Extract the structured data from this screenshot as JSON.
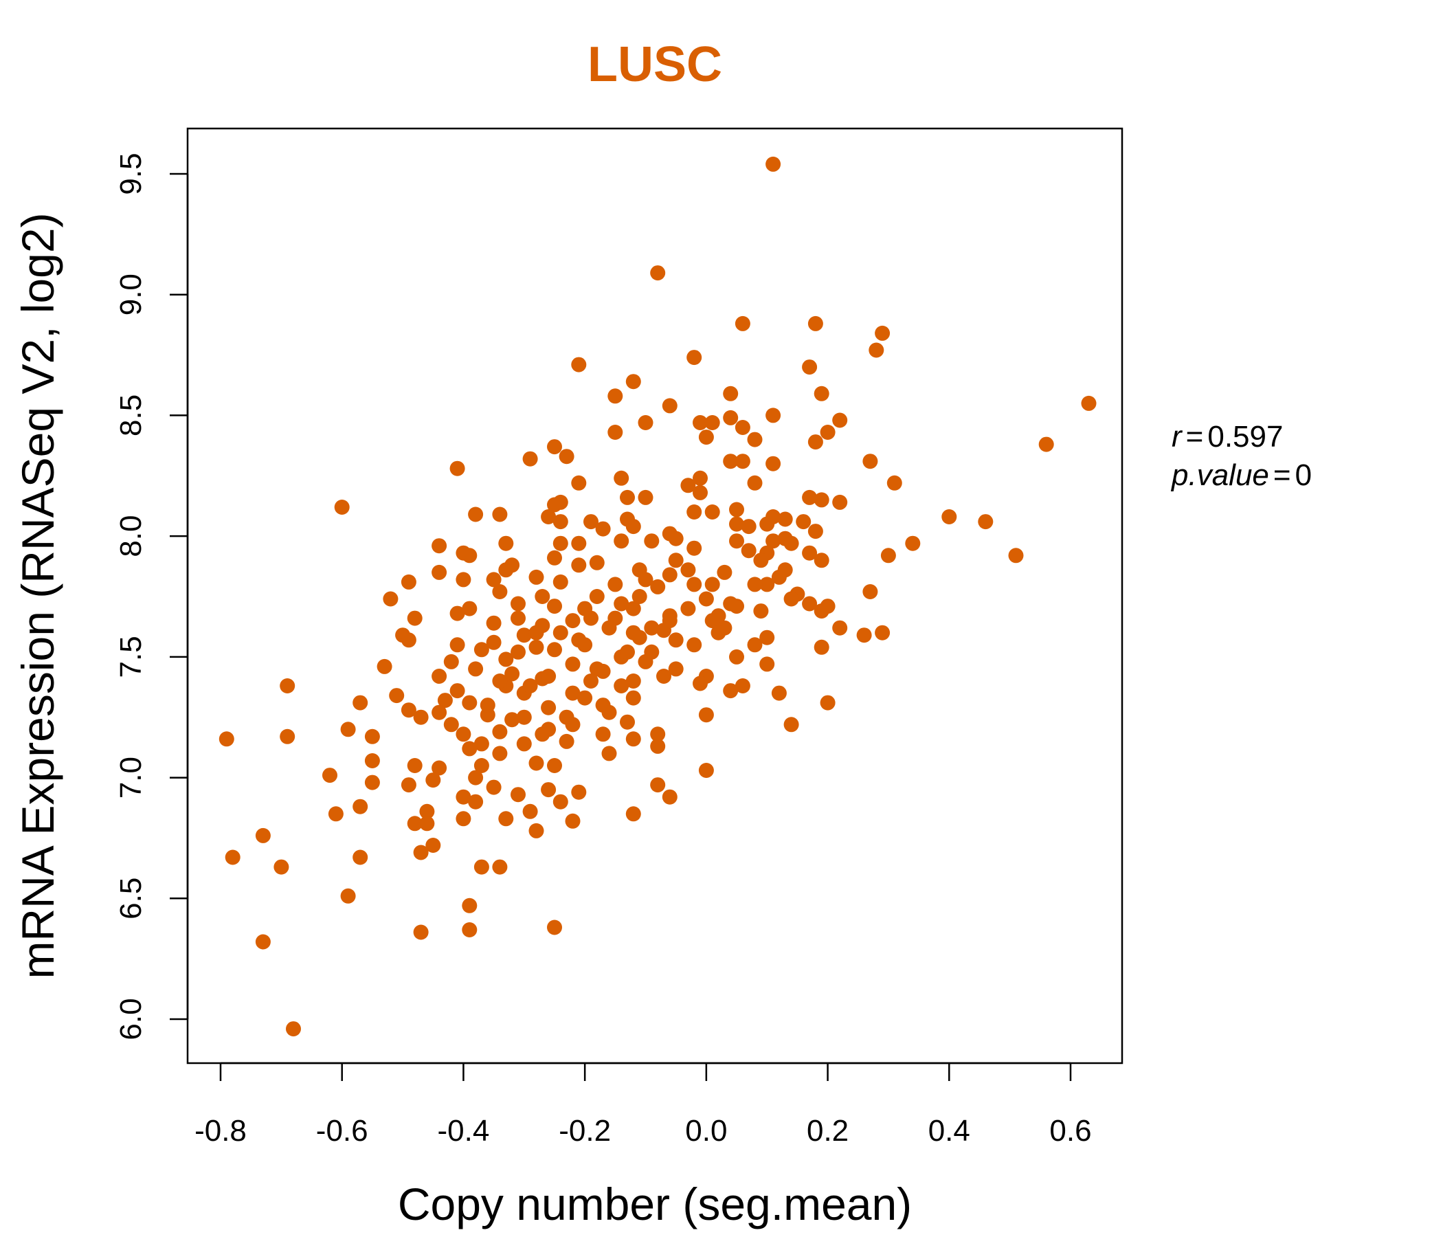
{
  "chart_data": {
    "type": "scatter",
    "title": "LUSC",
    "xlabel": "Copy number (seg.mean)",
    "ylabel": "mRNA Expression (RNASeq V2, log2)",
    "xlim": [
      -0.8,
      0.6
    ],
    "ylim": [
      6.0,
      9.5
    ],
    "x_ticks": [
      -0.8,
      -0.6,
      -0.4,
      -0.2,
      0.0,
      0.2,
      0.4,
      0.6
    ],
    "x_tick_labels": [
      "-0.8",
      "-0.6",
      "-0.4",
      "-0.2",
      "0.0",
      "0.2",
      "0.4",
      "0.6"
    ],
    "y_ticks": [
      6.0,
      6.5,
      7.0,
      7.5,
      8.0,
      8.5,
      9.0,
      9.5
    ],
    "y_tick_labels": [
      "6.0",
      "6.5",
      "7.0",
      "7.5",
      "8.0",
      "8.5",
      "9.0",
      "9.5"
    ],
    "grid": false,
    "annotation": {
      "r_label": "r",
      "r_value": "0.597",
      "p_label": "p.value",
      "p_value": "0"
    },
    "colors": {
      "title": "#D95F02",
      "points": "#D95F02",
      "axes": "#000000"
    },
    "points": [
      [
        0.11,
        9.54
      ],
      [
        -0.08,
        9.09
      ],
      [
        0.06,
        8.88
      ],
      [
        0.18,
        8.88
      ],
      [
        0.29,
        8.84
      ],
      [
        0.28,
        8.77
      ],
      [
        -0.02,
        8.74
      ],
      [
        -0.21,
        8.71
      ],
      [
        0.17,
        8.7
      ],
      [
        -0.12,
        8.64
      ],
      [
        0.19,
        8.59
      ],
      [
        0.04,
        8.59
      ],
      [
        -0.15,
        8.58
      ],
      [
        -0.06,
        8.54
      ],
      [
        0.63,
        8.55
      ],
      [
        0.11,
        8.5
      ],
      [
        0.04,
        8.49
      ],
      [
        0.22,
        8.48
      ],
      [
        -0.01,
        8.47
      ],
      [
        0.01,
        8.47
      ],
      [
        -0.1,
        8.47
      ],
      [
        0.06,
        8.45
      ],
      [
        -0.15,
        8.43
      ],
      [
        0.2,
        8.43
      ],
      [
        0.0,
        8.41
      ],
      [
        0.08,
        8.4
      ],
      [
        0.18,
        8.39
      ],
      [
        0.56,
        8.38
      ],
      [
        -0.25,
        8.37
      ],
      [
        -0.23,
        8.33
      ],
      [
        -0.29,
        8.32
      ],
      [
        0.27,
        8.31
      ],
      [
        0.11,
        8.3
      ],
      [
        0.04,
        8.31
      ],
      [
        0.06,
        8.31
      ],
      [
        -0.41,
        8.28
      ],
      [
        -0.01,
        8.24
      ],
      [
        0.31,
        8.22
      ],
      [
        -0.21,
        8.22
      ],
      [
        -0.03,
        8.21
      ],
      [
        0.08,
        8.22
      ],
      [
        -0.14,
        8.24
      ],
      [
        -0.01,
        8.18
      ],
      [
        0.17,
        8.16
      ],
      [
        0.19,
        8.15
      ],
      [
        -0.1,
        8.16
      ],
      [
        0.22,
        8.14
      ],
      [
        -0.25,
        8.13
      ],
      [
        -0.24,
        8.14
      ],
      [
        -0.13,
        8.16
      ],
      [
        -0.6,
        8.12
      ],
      [
        0.05,
        8.11
      ],
      [
        0.13,
        8.07
      ],
      [
        0.11,
        8.08
      ],
      [
        0.4,
        8.08
      ],
      [
        0.46,
        8.06
      ],
      [
        -0.34,
        8.09
      ],
      [
        -0.38,
        8.09
      ],
      [
        -0.26,
        8.08
      ],
      [
        -0.02,
        8.1
      ],
      [
        -0.19,
        8.06
      ],
      [
        0.01,
        8.1
      ],
      [
        0.05,
        8.05
      ],
      [
        0.16,
        8.06
      ],
      [
        -0.24,
        8.06
      ],
      [
        -0.13,
        8.07
      ],
      [
        -0.12,
        8.04
      ],
      [
        0.1,
        8.05
      ],
      [
        0.18,
        8.02
      ],
      [
        -0.17,
        8.03
      ],
      [
        0.07,
        8.04
      ],
      [
        0.13,
        7.99
      ],
      [
        -0.06,
        8.01
      ],
      [
        -0.09,
        7.98
      ],
      [
        -0.05,
        7.99
      ],
      [
        -0.24,
        7.97
      ],
      [
        -0.21,
        7.97
      ],
      [
        -0.44,
        7.96
      ],
      [
        -0.33,
        7.97
      ],
      [
        0.34,
        7.97
      ],
      [
        0.14,
        7.97
      ],
      [
        0.11,
        7.98
      ],
      [
        0.05,
        7.98
      ],
      [
        -0.14,
        7.98
      ],
      [
        0.3,
        7.92
      ],
      [
        0.51,
        7.92
      ],
      [
        -0.4,
        7.93
      ],
      [
        -0.39,
        7.92
      ],
      [
        0.07,
        7.94
      ],
      [
        -0.02,
        7.95
      ],
      [
        0.1,
        7.93
      ],
      [
        0.17,
        7.93
      ],
      [
        -0.25,
        7.91
      ],
      [
        0.09,
        7.9
      ],
      [
        0.19,
        7.9
      ],
      [
        -0.32,
        7.88
      ],
      [
        -0.18,
        7.89
      ],
      [
        -0.21,
        7.88
      ],
      [
        0.13,
        7.86
      ],
      [
        -0.44,
        7.85
      ],
      [
        -0.33,
        7.86
      ],
      [
        -0.03,
        7.86
      ],
      [
        0.03,
        7.85
      ],
      [
        -0.11,
        7.86
      ],
      [
        -0.06,
        7.84
      ],
      [
        0.12,
        7.83
      ],
      [
        -0.4,
        7.82
      ],
      [
        -0.35,
        7.82
      ],
      [
        -0.28,
        7.83
      ],
      [
        -0.49,
        7.81
      ],
      [
        -0.24,
        7.81
      ],
      [
        -0.02,
        7.8
      ],
      [
        0.01,
        7.8
      ],
      [
        -0.15,
        7.8
      ],
      [
        0.1,
        7.8
      ],
      [
        -0.08,
        7.79
      ],
      [
        -0.34,
        7.77
      ],
      [
        0.27,
        7.77
      ],
      [
        0.15,
        7.76
      ],
      [
        -0.27,
        7.75
      ],
      [
        -0.18,
        7.75
      ],
      [
        -0.11,
        7.75
      ],
      [
        0.0,
        7.74
      ],
      [
        -0.52,
        7.74
      ],
      [
        0.14,
        7.74
      ],
      [
        -0.31,
        7.72
      ],
      [
        0.05,
        7.71
      ],
      [
        -0.25,
        7.71
      ],
      [
        0.2,
        7.71
      ],
      [
        0.17,
        7.72
      ],
      [
        -0.39,
        7.7
      ],
      [
        -0.2,
        7.7
      ],
      [
        0.09,
        7.69
      ],
      [
        -0.12,
        7.7
      ],
      [
        -0.41,
        7.68
      ],
      [
        -0.06,
        7.67
      ],
      [
        0.19,
        7.69
      ],
      [
        -0.31,
        7.66
      ],
      [
        0.02,
        7.67
      ],
      [
        -0.48,
        7.66
      ],
      [
        -0.22,
        7.65
      ],
      [
        -0.15,
        7.66
      ],
      [
        -0.35,
        7.64
      ],
      [
        0.01,
        7.65
      ],
      [
        -0.27,
        7.63
      ],
      [
        0.22,
        7.62
      ],
      [
        -0.07,
        7.61
      ],
      [
        0.03,
        7.62
      ],
      [
        -0.12,
        7.6
      ],
      [
        0.29,
        7.6
      ],
      [
        -0.3,
        7.59
      ],
      [
        0.26,
        7.59
      ],
      [
        -0.5,
        7.59
      ],
      [
        -0.49,
        7.57
      ],
      [
        0.1,
        7.58
      ],
      [
        -0.21,
        7.57
      ],
      [
        -0.35,
        7.56
      ],
      [
        -0.05,
        7.57
      ],
      [
        -0.41,
        7.55
      ],
      [
        0.19,
        7.54
      ],
      [
        0.08,
        7.55
      ],
      [
        -0.28,
        7.54
      ],
      [
        -0.37,
        7.53
      ],
      [
        -0.25,
        7.53
      ],
      [
        -0.09,
        7.52
      ],
      [
        0.05,
        7.5
      ],
      [
        -0.14,
        7.5
      ],
      [
        -0.33,
        7.49
      ],
      [
        -0.42,
        7.48
      ],
      [
        -0.22,
        7.47
      ],
      [
        0.1,
        7.47
      ],
      [
        -0.53,
        7.46
      ],
      [
        -0.38,
        7.45
      ],
      [
        -0.05,
        7.45
      ],
      [
        -0.17,
        7.44
      ],
      [
        -0.32,
        7.43
      ],
      [
        -0.44,
        7.42
      ],
      [
        0.0,
        7.42
      ],
      [
        -0.27,
        7.41
      ],
      [
        -0.12,
        7.4
      ],
      [
        -0.01,
        7.39
      ],
      [
        -0.33,
        7.38
      ],
      [
        -0.69,
        7.38
      ],
      [
        0.06,
        7.38
      ],
      [
        -0.41,
        7.36
      ],
      [
        0.04,
        7.36
      ],
      [
        -0.3,
        7.35
      ],
      [
        0.12,
        7.35
      ],
      [
        -0.51,
        7.34
      ],
      [
        -0.2,
        7.33
      ],
      [
        -0.12,
        7.33
      ],
      [
        -0.43,
        7.32
      ],
      [
        -0.39,
        7.31
      ],
      [
        -0.57,
        7.31
      ],
      [
        0.2,
        7.31
      ],
      [
        -0.26,
        7.29
      ],
      [
        -0.49,
        7.28
      ],
      [
        -0.44,
        7.27
      ],
      [
        -0.16,
        7.27
      ],
      [
        -0.36,
        7.26
      ],
      [
        0.0,
        7.26
      ],
      [
        -0.23,
        7.25
      ],
      [
        -0.47,
        7.25
      ],
      [
        -0.32,
        7.24
      ],
      [
        -0.13,
        7.23
      ],
      [
        -0.42,
        7.22
      ],
      [
        -0.59,
        7.2
      ],
      [
        0.14,
        7.22
      ],
      [
        -0.26,
        7.2
      ],
      [
        -0.34,
        7.19
      ],
      [
        -0.08,
        7.18
      ],
      [
        -0.4,
        7.18
      ],
      [
        -0.69,
        7.17
      ],
      [
        -0.17,
        7.18
      ],
      [
        -0.55,
        7.17
      ],
      [
        -0.79,
        7.16
      ],
      [
        -0.12,
        7.16
      ],
      [
        -0.23,
        7.15
      ],
      [
        -0.37,
        7.14
      ],
      [
        -0.3,
        7.14
      ],
      [
        -0.08,
        7.13
      ],
      [
        -0.39,
        7.12
      ],
      [
        -0.16,
        7.1
      ],
      [
        -0.34,
        7.1
      ],
      [
        -0.55,
        7.07
      ],
      [
        -0.28,
        7.06
      ],
      [
        -0.48,
        7.05
      ],
      [
        -0.37,
        7.05
      ],
      [
        -0.25,
        7.05
      ],
      [
        -0.44,
        7.04
      ],
      [
        0.0,
        7.03
      ],
      [
        -0.62,
        7.01
      ],
      [
        -0.38,
        7.0
      ],
      [
        -0.45,
        6.99
      ],
      [
        -0.55,
        6.98
      ],
      [
        -0.49,
        6.97
      ],
      [
        -0.08,
        6.97
      ],
      [
        -0.35,
        6.96
      ],
      [
        -0.26,
        6.95
      ],
      [
        -0.21,
        6.94
      ],
      [
        -0.31,
        6.93
      ],
      [
        -0.4,
        6.92
      ],
      [
        -0.06,
        6.92
      ],
      [
        -0.57,
        6.88
      ],
      [
        -0.38,
        6.9
      ],
      [
        -0.24,
        6.9
      ],
      [
        -0.29,
        6.86
      ],
      [
        -0.46,
        6.86
      ],
      [
        -0.12,
        6.85
      ],
      [
        -0.61,
        6.85
      ],
      [
        -0.33,
        6.83
      ],
      [
        -0.4,
        6.83
      ],
      [
        -0.22,
        6.82
      ],
      [
        -0.48,
        6.81
      ],
      [
        -0.46,
        6.81
      ],
      [
        -0.28,
        6.78
      ],
      [
        -0.73,
        6.76
      ],
      [
        -0.45,
        6.72
      ],
      [
        -0.47,
        6.69
      ],
      [
        -0.78,
        6.67
      ],
      [
        -0.57,
        6.67
      ],
      [
        -0.37,
        6.63
      ],
      [
        -0.34,
        6.63
      ],
      [
        -0.7,
        6.63
      ],
      [
        -0.59,
        6.51
      ],
      [
        -0.39,
        6.47
      ],
      [
        -0.25,
        6.38
      ],
      [
        -0.39,
        6.37
      ],
      [
        -0.47,
        6.36
      ],
      [
        -0.73,
        6.32
      ],
      [
        -0.68,
        5.96
      ],
      [
        -0.18,
        7.45
      ],
      [
        -0.1,
        7.48
      ],
      [
        -0.07,
        7.42
      ],
      [
        -0.14,
        7.38
      ],
      [
        -0.19,
        7.4
      ],
      [
        -0.22,
        7.35
      ],
      [
        -0.26,
        7.42
      ],
      [
        -0.29,
        7.38
      ],
      [
        -0.24,
        7.6
      ],
      [
        -0.2,
        7.55
      ],
      [
        -0.16,
        7.62
      ],
      [
        -0.11,
        7.58
      ],
      [
        -0.06,
        7.65
      ],
      [
        -0.03,
        7.7
      ],
      [
        -0.14,
        7.72
      ],
      [
        -0.19,
        7.66
      ],
      [
        -0.28,
        7.6
      ],
      [
        -0.31,
        7.52
      ],
      [
        -0.34,
        7.4
      ],
      [
        -0.36,
        7.3
      ],
      [
        -0.3,
        7.25
      ],
      [
        -0.27,
        7.18
      ],
      [
        -0.22,
        7.22
      ],
      [
        -0.17,
        7.3
      ],
      [
        -0.13,
        7.52
      ],
      [
        -0.09,
        7.62
      ],
      [
        -0.02,
        7.55
      ],
      [
        0.02,
        7.6
      ],
      [
        0.04,
        7.72
      ],
      [
        0.08,
        7.8
      ],
      [
        -0.05,
        7.9
      ],
      [
        -0.1,
        7.82
      ]
    ]
  }
}
